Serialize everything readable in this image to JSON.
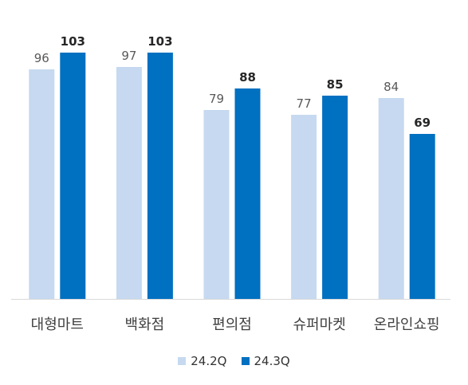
{
  "chart_data": {
    "type": "bar",
    "categories": [
      "대형마트",
      "백화점",
      "편의점",
      "슈퍼마켓",
      "온라인쇼핑"
    ],
    "series": [
      {
        "name": "24.2Q",
        "values": [
          96,
          97,
          79,
          77,
          84
        ],
        "color": "#c6d9f0",
        "label_bold": false,
        "label_color": "#595959"
      },
      {
        "name": "24.3Q",
        "values": [
          103,
          103,
          88,
          85,
          69
        ],
        "color": "#0070c0",
        "label_bold": true,
        "label_color": "#262626"
      }
    ],
    "ylim": [
      0,
      103
    ],
    "grid": false,
    "legend_position": "bottom",
    "title": "",
    "xlabel": "",
    "ylabel": ""
  }
}
